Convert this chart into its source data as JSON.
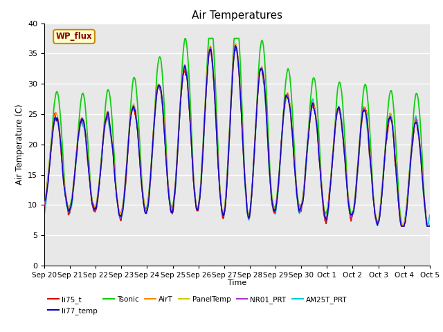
{
  "title": "Air Temperatures",
  "xlabel": "Time",
  "ylabel": "Air Temperature (C)",
  "ylim": [
    0,
    40
  ],
  "yticks": [
    0,
    5,
    10,
    15,
    20,
    25,
    30,
    35,
    40
  ],
  "plot_bg_color": "#e8e8e8",
  "fig_bg_color": "#ffffff",
  "grid_color": "#ffffff",
  "series": [
    {
      "name": "li75_t",
      "color": "#dd0000",
      "lw": 1.1,
      "zorder": 4
    },
    {
      "name": "li77_temp",
      "color": "#0000cc",
      "lw": 1.1,
      "zorder": 5
    },
    {
      "name": "Tsonic",
      "color": "#00cc00",
      "lw": 1.3,
      "zorder": 3
    },
    {
      "name": "AirT",
      "color": "#ff8800",
      "lw": 1.1,
      "zorder": 4
    },
    {
      "name": "PanelTemp",
      "color": "#cccc00",
      "lw": 1.1,
      "zorder": 4
    },
    {
      "name": "NR01_PRT",
      "color": "#aa33cc",
      "lw": 1.1,
      "zorder": 4
    },
    {
      "name": "AM25T_PRT",
      "color": "#00cccc",
      "lw": 1.3,
      "zorder": 2
    }
  ],
  "annotation_text": "WP_flux",
  "n_days": 15,
  "ppd": 144,
  "seed": 7,
  "day_labels": [
    "Sep 20",
    "Sep 21",
    "Sep 22",
    "Sep 23",
    "Sep 24",
    "Sep 25",
    "Sep 26",
    "Sep 27",
    "Sep 28",
    "Sep 29",
    "Sep 30",
    "Oct 1",
    "Oct 2",
    "Oct 3",
    "Oct 4",
    "Oct 5"
  ]
}
